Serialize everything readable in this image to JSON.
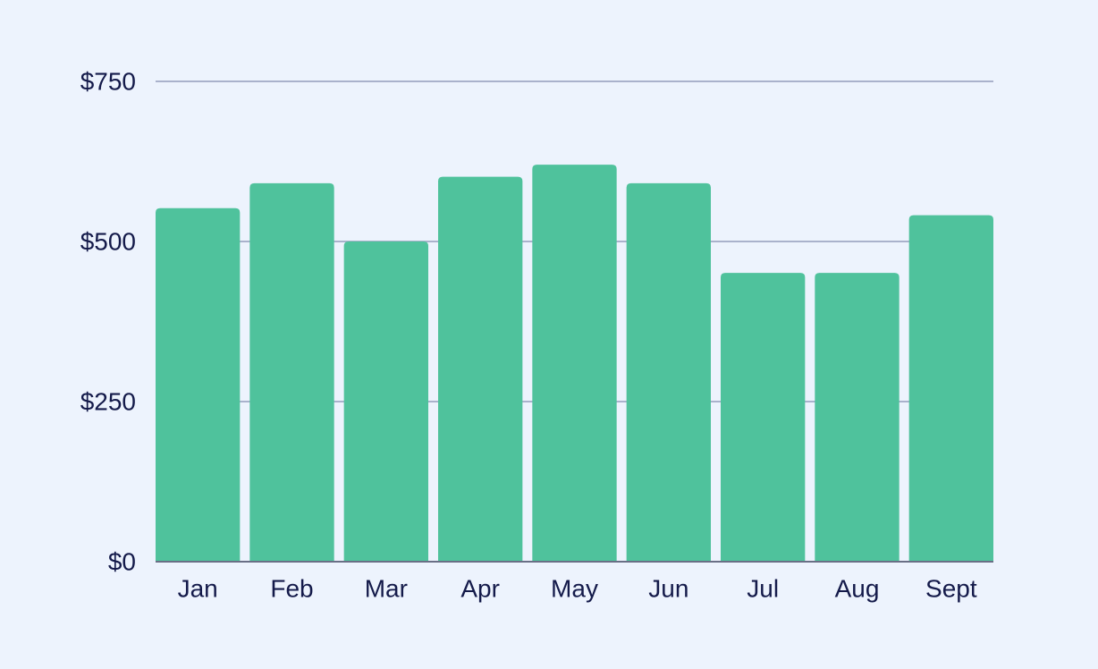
{
  "chart_data": {
    "type": "bar",
    "categories": [
      "Jan",
      "Feb",
      "Mar",
      "Apr",
      "May",
      "Jun",
      "Jul",
      "Aug",
      "Sept"
    ],
    "values": [
      552,
      591,
      500,
      601,
      620,
      591,
      451,
      451,
      541
    ],
    "ylim": [
      0,
      750
    ],
    "yticks": [
      0,
      250,
      500,
      750
    ],
    "ytick_labels": [
      "$0",
      "$250",
      "$500",
      "$750"
    ],
    "grid": true,
    "title": "",
    "xlabel": "",
    "ylabel": ""
  },
  "colors": {
    "background": "#edf3fd",
    "bar": "#4fc29c",
    "gridline": "#aab2cc",
    "axis": "#6a6f86",
    "text": "#141a4a"
  }
}
